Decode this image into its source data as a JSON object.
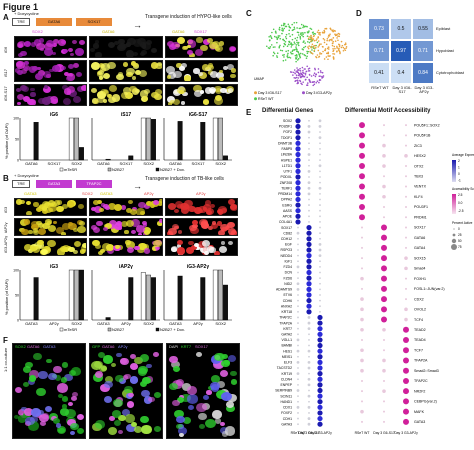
{
  "figure": {
    "title": "Figure 1"
  },
  "panelA": {
    "label": "A",
    "dox": "+ Doxycycline",
    "tre": "TRE",
    "g1": "GATA6",
    "g2": "SOX17",
    "caption": "Transgene induction of HYPO-like cells",
    "channels": [
      "SOX2",
      "GATA6",
      "SOX17"
    ],
    "rows": [
      "iG6",
      "iS17",
      "iG6-S17"
    ],
    "plots": [
      {
        "title": "iG6",
        "cats": [
          "GATA6",
          "SOX17",
          "SOX2"
        ]
      },
      {
        "title": "iS17",
        "cats": [
          "GATA6",
          "SOX17",
          "SOX2"
        ]
      },
      {
        "title": "iG6-S17",
        "cats": [
          "GATA6",
          "SOX17",
          "SOX2"
        ]
      }
    ],
    "ylabel": "% positive (of DAPI)",
    "legend": [
      "mTeSR",
      "N2B27",
      "N2B27 + Dox."
    ]
  },
  "panelB": {
    "label": "B",
    "dox": "+ Doxycycline",
    "tre": "TRE",
    "g1": "GATA3",
    "g2": "TFAP2C",
    "caption": "Transgene induction of TB-like cells",
    "channels": [
      "GATA3",
      "SOX2",
      "AP2γ"
    ],
    "rows": [
      "iG3",
      "iAP2γ",
      "iG3-AP2γ"
    ],
    "plots": [
      {
        "title": "iG3",
        "cats": [
          "GATA3",
          "AP2γ",
          "SOX2"
        ]
      },
      {
        "title": "iAP2γ",
        "cats": [
          "GATA3",
          "AP2γ",
          "SOX2"
        ]
      },
      {
        "title": "iG3-AP2γ",
        "cats": [
          "GATA3",
          "AP2γ",
          "SOX2"
        ]
      }
    ],
    "ylabel": "% positive (of DAPI)",
    "legend": [
      "mTeSR",
      "N2B27",
      "N2B27 + Dox."
    ]
  },
  "panelC": {
    "label": "C",
    "axis": "UMAP",
    "legend": [
      "Day 3 iG6-S17",
      "Day 3 iG3-AP2γ",
      "RSeT WT"
    ]
  },
  "panelD": {
    "label": "D",
    "rows": [
      "Epiblast",
      "Hypoblast",
      "Cytotrophoblast"
    ],
    "cols": [
      "RSeT WT",
      "Day 3 iG6-S17",
      "Day 3 iG3-AP2γ"
    ],
    "values": [
      [
        "0.73",
        "0.5",
        "0.55"
      ],
      [
        "0.71",
        "0.97",
        "0.71"
      ],
      [
        "0.41",
        "0.4",
        "0.84"
      ]
    ]
  },
  "panelE": {
    "label": "E",
    "title_genes": "Differential Genes",
    "title_motifs": "Differential Motif Accessibility",
    "genes": [
      "SOX2",
      "POU5F1",
      "FGF2",
      "TDGF1",
      "DNMT3B",
      "FABP5",
      "LIN28A",
      "HSPE1",
      "L1TD1",
      "UTF1",
      "PODXL",
      "ZNF208",
      "TERF1",
      "PRDM14",
      "DPPA2",
      "ESRG",
      "AASS",
      "APOE",
      "COL4A1",
      "SOX17",
      "CD82",
      "CDH12",
      "EGF",
      "RSPO3",
      "NEDD4",
      "IGF1",
      "FZD4",
      "DCN",
      "FZD6",
      "NID2",
      "ADAMTS9",
      "ETV6",
      "CDH6",
      "ANXA2",
      "KRT18",
      "TFAP2C",
      "TFAP2A",
      "KRT7",
      "GATA2",
      "VGLL1",
      "BAMBI",
      "HES1",
      "MEIS1",
      "ELF3",
      "TACSTD2",
      "KRT19",
      "CLDN4",
      "ENPEP",
      "SERPINB9",
      "SCIN11",
      "HAND1",
      "CDX1",
      "FOXF2",
      "CDH1",
      "GATA3"
    ],
    "motifs": [
      "POU5F1::SOX2",
      "POU5F1B",
      "ZIC3",
      "HESX2",
      "OTX2",
      "TBX3",
      "VENTX",
      "KLF4",
      "POU3F1",
      "PRDM1",
      "SOX17",
      "GATA6",
      "GATA4",
      "SOX15",
      "Smad4",
      "FOXH1",
      "FOSL1::JUN(var.2)",
      "CDX2",
      "OVOL2",
      "TCF4",
      "TEAD2",
      "TEAD4",
      "TCF7",
      "TFAP2A",
      "Smad2::Smad3",
      "TFAP2C",
      "NR2F2",
      "CEBPG(var.2)",
      "MAFK",
      "GATA3"
    ],
    "xcats": [
      "RSeT WT",
      "Day 3 G6-S17",
      "Day 3 G3-AP2γ"
    ],
    "legend": {
      "expr_title": "Average Expression",
      "expr_vals": [
        "2",
        "1",
        "0",
        "-1"
      ],
      "acc_title": "Accessibility Score",
      "acc_vals": [
        "2.5",
        "0.0",
        "-2.5"
      ],
      "pct_title": "Percent Active",
      "pct_vals": [
        "0",
        "25",
        "50",
        "75"
      ]
    }
  },
  "panelF": {
    "label": "F",
    "side": "1:1 co-culture",
    "img1": [
      "SOX2",
      "GATA6",
      "GATA3"
    ],
    "img2": [
      "GFP",
      "GATA6",
      "AP2γ"
    ],
    "img3": [
      "DAPI",
      "KRT7",
      "SOX17"
    ]
  },
  "chart_data": [
    {
      "type": "bar",
      "title": "iG6",
      "categories": [
        "GATA6",
        "SOX17",
        "SOX2"
      ],
      "series": [
        {
          "name": "mTeSR",
          "values": [
            0,
            0,
            100
          ]
        },
        {
          "name": "N2B27",
          "values": [
            0,
            0,
            100
          ]
        },
        {
          "name": "N2B27 + Dox.",
          "values": [
            90,
            0,
            30
          ]
        }
      ],
      "ylabel": "% positive (of DAPI)",
      "ylim": [
        0,
        100
      ]
    },
    {
      "type": "bar",
      "title": "iS17",
      "categories": [
        "GATA6",
        "SOX17",
        "SOX2"
      ],
      "series": [
        {
          "name": "mTeSR",
          "values": [
            0,
            0,
            100
          ]
        },
        {
          "name": "N2B27",
          "values": [
            0,
            0,
            100
          ]
        },
        {
          "name": "N2B27 + Dox.",
          "values": [
            2,
            10,
            97
          ]
        }
      ],
      "ylabel": "% positive (of DAPI)",
      "ylim": [
        0,
        100
      ]
    },
    {
      "type": "bar",
      "title": "iG6-S17",
      "categories": [
        "GATA6",
        "SOX17",
        "SOX2"
      ],
      "series": [
        {
          "name": "mTeSR",
          "values": [
            0,
            0,
            100
          ]
        },
        {
          "name": "N2B27",
          "values": [
            0,
            0,
            100
          ]
        },
        {
          "name": "N2B27 + Dox.",
          "values": [
            92,
            90,
            10
          ]
        }
      ],
      "ylabel": "% positive (of DAPI)",
      "ylim": [
        0,
        100
      ]
    },
    {
      "type": "bar",
      "title": "iG3",
      "categories": [
        "GATA3",
        "AP2γ",
        "SOX2"
      ],
      "series": [
        {
          "name": "mTeSR",
          "values": [
            0,
            0,
            100
          ]
        },
        {
          "name": "N2B27",
          "values": [
            0,
            0,
            100
          ]
        },
        {
          "name": "N2B27 + Dox.",
          "values": [
            85,
            0,
            100
          ]
        }
      ],
      "ylabel": "% positive (of DAPI)",
      "ylim": [
        0,
        100
      ]
    },
    {
      "type": "bar",
      "title": "iAP2γ",
      "categories": [
        "GATA3",
        "AP2γ",
        "SOX2"
      ],
      "series": [
        {
          "name": "mTeSR",
          "values": [
            0,
            0,
            95
          ]
        },
        {
          "name": "N2B27",
          "values": [
            0,
            0,
            90
          ]
        },
        {
          "name": "N2B27 + Dox.",
          "values": [
            5,
            85,
            85
          ]
        }
      ],
      "ylabel": "% positive (of DAPI)",
      "ylim": [
        0,
        100
      ]
    },
    {
      "type": "bar",
      "title": "iG3-AP2γ",
      "categories": [
        "GATA3",
        "AP2γ",
        "SOX2"
      ],
      "series": [
        {
          "name": "mTeSR",
          "values": [
            0,
            0,
            100
          ]
        },
        {
          "name": "N2B27",
          "values": [
            0,
            0,
            100
          ]
        },
        {
          "name": "N2B27 + Dox.",
          "values": [
            88,
            85,
            70
          ]
        }
      ],
      "ylabel": "% positive (of DAPI)",
      "ylim": [
        0,
        100
      ]
    }
  ]
}
